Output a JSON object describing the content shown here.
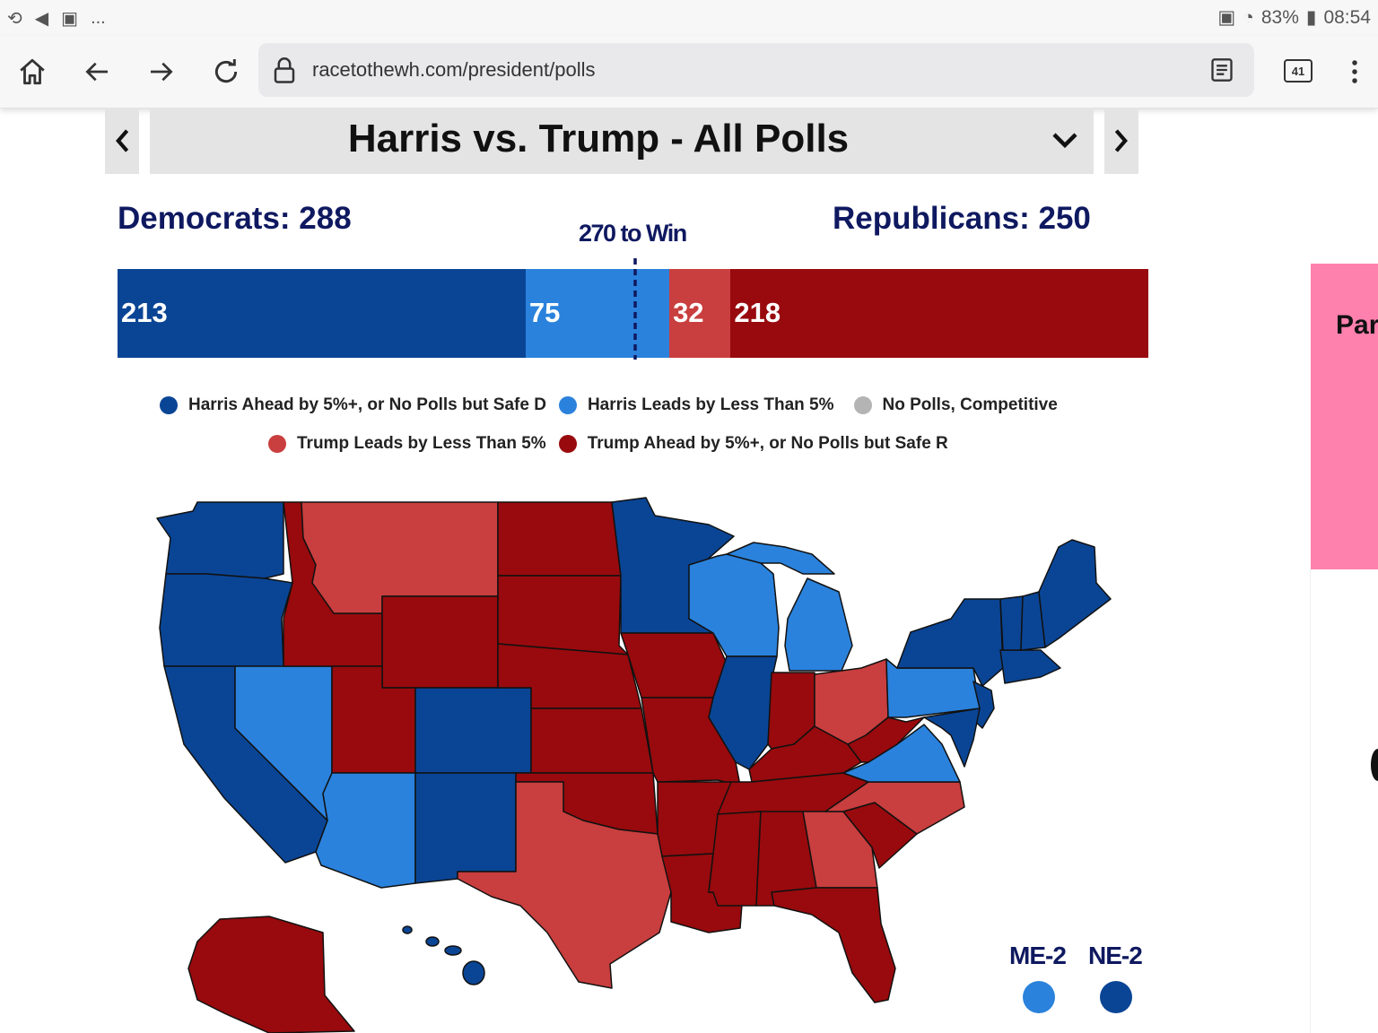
{
  "status_bar": {
    "battery": "83%",
    "time": "08:54",
    "dots": "..."
  },
  "browser": {
    "url": "racetothewh.com/president/polls",
    "tabs_count": "41"
  },
  "selector": {
    "title": "Harris vs. Trump - All Polls"
  },
  "totals": {
    "democrats": "Democrats: 288",
    "republicans": "Republicans: 250",
    "to_win": "270 to Win"
  },
  "ev_bar": {
    "safe_d": "213",
    "lean_d": "75",
    "lean_r": "32",
    "safe_r": "218",
    "total": 538,
    "threshold": 270
  },
  "legend": [
    {
      "label": "Harris Ahead by 5%+, or No Polls but Safe D",
      "color": "#0a4595"
    },
    {
      "label": "Harris Leads by Less Than 5%",
      "color": "#2a82dc"
    },
    {
      "label": "No Polls, Competitive",
      "color": "#b4b4b4"
    },
    {
      "label": "Trump Leads by Less Than 5%",
      "color": "#c93e3e"
    },
    {
      "label": "Trump Ahead by 5%+, or No Polls but Safe R",
      "color": "#980a0d"
    }
  ],
  "colors": {
    "safe_d": "#0a4595",
    "lean_d": "#2a82dc",
    "lean_r": "#c93e3e",
    "safe_r": "#980a0d",
    "competitive": "#b4b4b4",
    "header": "#0f1960"
  },
  "districts": [
    {
      "label": "ME-2",
      "color": "#2a82dc"
    },
    {
      "label": "NE-2",
      "color": "#0a4595"
    }
  ],
  "side_panel": {
    "text": "Parl"
  }
}
